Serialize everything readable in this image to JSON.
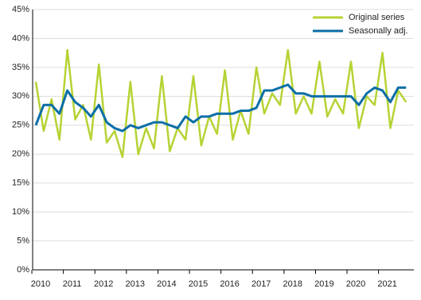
{
  "chart_data": {
    "type": "line",
    "categories": [
      "2010",
      null,
      null,
      null,
      "2011",
      null,
      null,
      null,
      "2012",
      null,
      null,
      null,
      "2013",
      null,
      null,
      null,
      "2014",
      null,
      null,
      null,
      "2015",
      null,
      null,
      null,
      "2016",
      null,
      null,
      null,
      "2017",
      null,
      null,
      null,
      "2018",
      null,
      null,
      null,
      "2019",
      null,
      null,
      null,
      "2020",
      null,
      null,
      null,
      "2021",
      null,
      null,
      null
    ],
    "series": [
      {
        "name": "Original series",
        "color": "#b5d334",
        "values": [
          32.5,
          24,
          29.5,
          22.5,
          38,
          26,
          28.5,
          22.5,
          35.5,
          22,
          24,
          19.5,
          32.5,
          20,
          24.5,
          21,
          33.5,
          20.5,
          24.5,
          22.5,
          33.5,
          21.5,
          26.5,
          23.5,
          34.5,
          22.5,
          27.5,
          23.5,
          35,
          27,
          30.5,
          28.5,
          38,
          27,
          30,
          27,
          36,
          26.5,
          29.5,
          27,
          36,
          24.5,
          30,
          28.5,
          37.5,
          24.5,
          31,
          29
        ]
      },
      {
        "name": "Seasonally adj.",
        "color": "#0b6ea6",
        "values": [
          25,
          28.5,
          28.5,
          27,
          31,
          29,
          28,
          26.5,
          28.5,
          25.5,
          24.5,
          24,
          25,
          24.5,
          25,
          25.5,
          25.5,
          25,
          24.5,
          26.5,
          25.5,
          26.5,
          26.5,
          27,
          27,
          27,
          27.5,
          27.5,
          28,
          31,
          31,
          31.5,
          32,
          30.5,
          30.5,
          30,
          30,
          30,
          30,
          30,
          30,
          28.5,
          30.5,
          31.5,
          31,
          29,
          31.5,
          31.5
        ]
      }
    ],
    "ylim": [
      0,
      45
    ],
    "yticks": [
      {
        "value": 0,
        "label": "0%"
      },
      {
        "value": 5,
        "label": "5%"
      },
      {
        "value": 10,
        "label": "10%"
      },
      {
        "value": 15,
        "label": "15%"
      },
      {
        "value": 20,
        "label": "20%"
      },
      {
        "value": 25,
        "label": "25%"
      },
      {
        "value": 30,
        "label": "30%"
      },
      {
        "value": 35,
        "label": "35%"
      },
      {
        "value": 40,
        "label": "40%"
      },
      {
        "value": 45,
        "label": "45%"
      }
    ],
    "grid": true,
    "legend": "upper right"
  }
}
